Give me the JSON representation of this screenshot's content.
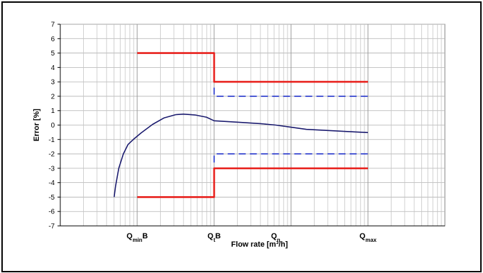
{
  "chart_data": {
    "type": "line",
    "title": "",
    "xlabel": "Flow rate [m³/h]",
    "ylabel": "Error [%]",
    "x_scale": "log",
    "x_range_decades": [
      0,
      5
    ],
    "ylim": [
      -7,
      7
    ],
    "yticks": [
      7,
      6,
      5,
      4,
      3,
      2,
      1,
      0,
      -1,
      -2,
      -3,
      -4,
      -5,
      -6,
      -7
    ],
    "grid": true,
    "x_categories": [
      {
        "main": "Q",
        "sub": "min",
        "suffix": "B",
        "pos": 1
      },
      {
        "main": "Q",
        "sub": "t",
        "suffix": "B",
        "pos": 2.0
      },
      {
        "main": "Q",
        "sub": "n",
        "suffix": "",
        "pos": 2.8
      },
      {
        "main": "Q",
        "sub": "max",
        "suffix": "",
        "pos": 4.0
      }
    ],
    "series": [
      {
        "style": "solid",
        "color": "#1a1a6e",
        "width": 1.6,
        "points": [
          [
            0.7,
            -5
          ],
          [
            0.72,
            -4.2
          ],
          [
            0.76,
            -3
          ],
          [
            0.82,
            -2
          ],
          [
            0.88,
            -1.35
          ],
          [
            0.95,
            -1
          ],
          [
            1.05,
            -0.55
          ],
          [
            1.2,
            0.05
          ],
          [
            1.35,
            0.5
          ],
          [
            1.5,
            0.72
          ],
          [
            1.6,
            0.76
          ],
          [
            1.75,
            0.7
          ],
          [
            1.9,
            0.55
          ],
          [
            2.0,
            0.3
          ],
          [
            2.3,
            0.2
          ],
          [
            2.6,
            0.1
          ],
          [
            2.8,
            0.0
          ],
          [
            3.0,
            -0.15
          ],
          [
            3.2,
            -0.3
          ],
          [
            3.5,
            -0.38
          ],
          [
            3.75,
            -0.45
          ],
          [
            4.0,
            -0.52
          ]
        ]
      },
      {
        "style": "solid",
        "color": "#e8201c",
        "width": 2.6,
        "points": [
          [
            1.0,
            5
          ],
          [
            2.0,
            5
          ],
          [
            2.0,
            3
          ],
          [
            4.0,
            3
          ]
        ]
      },
      {
        "style": "solid",
        "color": "#e8201c",
        "width": 2.6,
        "points": [
          [
            1.0,
            -5
          ],
          [
            2.0,
            -5
          ],
          [
            2.0,
            -3
          ],
          [
            4.0,
            -3
          ]
        ]
      },
      {
        "style": "dashed",
        "color": "#2233cc",
        "width": 1.6,
        "points": [
          [
            2.0,
            2.6
          ],
          [
            2.0,
            2
          ],
          [
            4.0,
            2
          ]
        ]
      },
      {
        "style": "dashed",
        "color": "#2233cc",
        "width": 1.6,
        "points": [
          [
            2.0,
            -2.6
          ],
          [
            2.0,
            -2
          ],
          [
            4.0,
            -2
          ]
        ]
      }
    ]
  }
}
